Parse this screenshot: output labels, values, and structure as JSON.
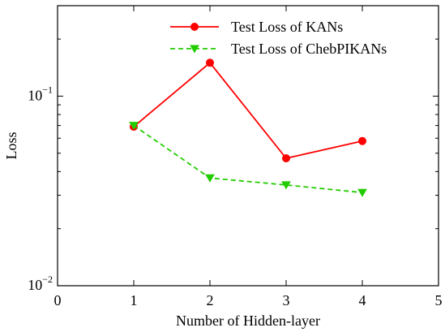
{
  "chart_data": {
    "type": "line",
    "xlabel": "Number of Hidden-layer",
    "ylabel": "Loss",
    "xlim": [
      0,
      5
    ],
    "ylim": [
      0.01,
      0.3
    ],
    "yscale": "log",
    "xticks": [
      0,
      1,
      2,
      3,
      4,
      5
    ],
    "yticks": [
      {
        "value": 0.1,
        "base": "10",
        "exp": "−1"
      },
      {
        "value": 0.01,
        "base": "10",
        "exp": "−2"
      }
    ],
    "grid": false,
    "legend_position": "top-right",
    "series": [
      {
        "name": "Test Loss of KANs",
        "color": "#ff0000",
        "line_style": "solid",
        "marker": "circle",
        "x": [
          1,
          2,
          3,
          4
        ],
        "y": [
          0.069,
          0.15,
          0.047,
          0.058
        ]
      },
      {
        "name": "Test Loss of ChebPIKANs",
        "color": "#22cc00",
        "line_style": "dashed",
        "marker": "triangle-down",
        "x": [
          1,
          2,
          3,
          4
        ],
        "y": [
          0.07,
          0.037,
          0.034,
          0.031
        ]
      }
    ]
  }
}
